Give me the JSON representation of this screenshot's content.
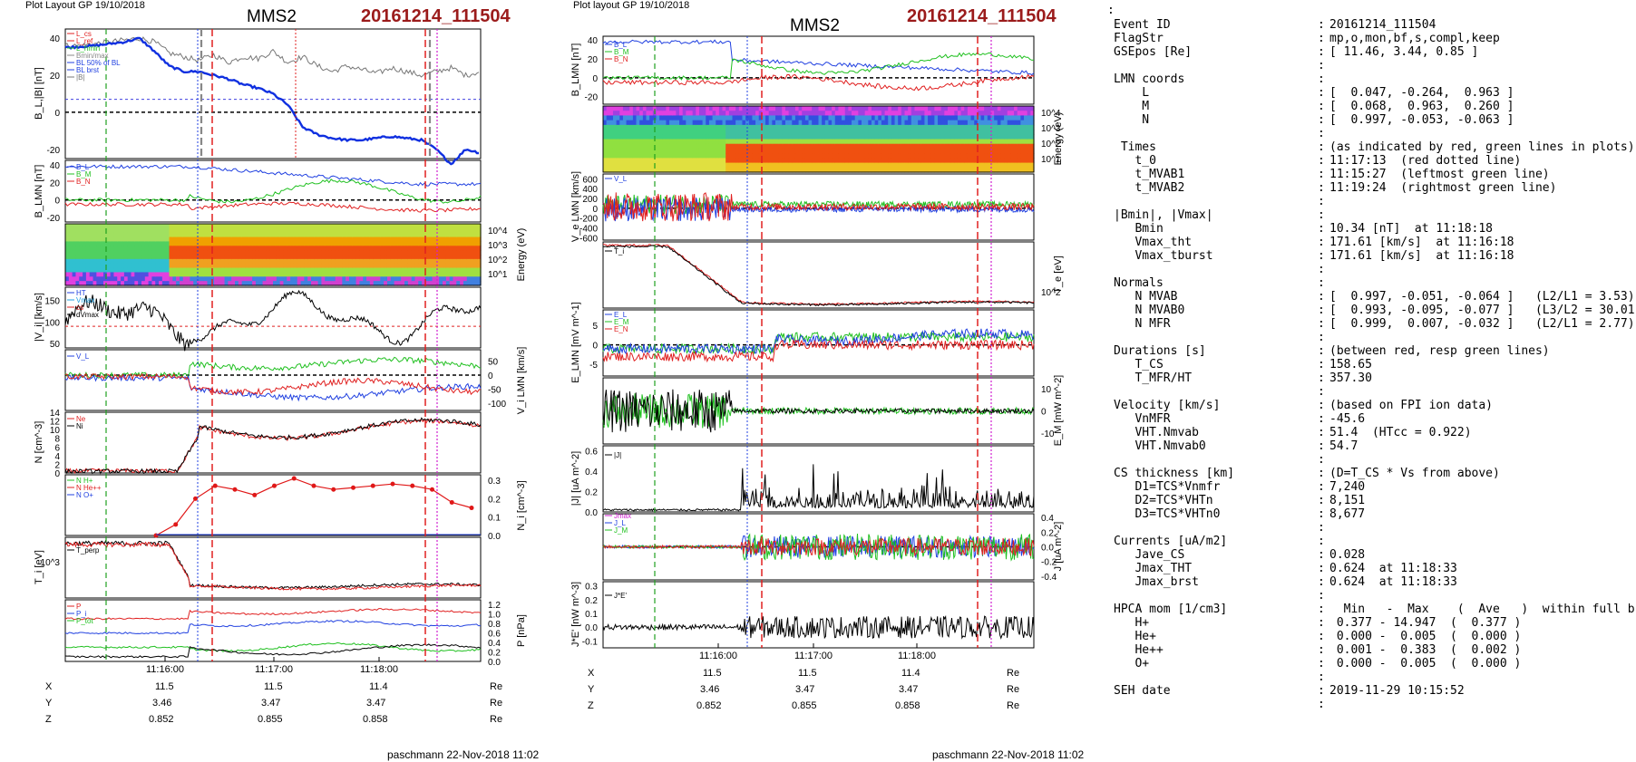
{
  "left_panel": {
    "layout_label": "Plot Layout GP 19/10/2018",
    "spacecraft": "MMS2",
    "event_id": "20161214_111504",
    "footer": "paschmann 22-Nov-2018 11:02",
    "time_ticks": [
      "11:16:00",
      "11:17:00",
      "11:18:00"
    ],
    "ephemeris": [
      {
        "coord": "X",
        "values": [
          "11.5",
          "11.5",
          "11.4"
        ],
        "unit": "Re"
      },
      {
        "coord": "Y",
        "values": [
          "3.46",
          "3.47",
          "3.47"
        ],
        "unit": "Re"
      },
      {
        "coord": "Z",
        "values": [
          "0.852",
          "0.855",
          "0.858"
        ],
        "unit": "Re"
      }
    ]
  },
  "middle_panel": {
    "layout_label": "Plot layout GP 19/10/2018",
    "spacecraft": "MMS2",
    "event_id": "20161214_111504",
    "footer": "paschmann 22-Nov-2018 11:02",
    "time_ticks": [
      "11:16:00",
      "11:17:00",
      "11:18:00"
    ],
    "ephemeris": [
      {
        "coord": "X",
        "values": [
          "11.5",
          "11.5",
          "11.4"
        ],
        "unit": "Re"
      },
      {
        "coord": "Y",
        "values": [
          "3.46",
          "3.47",
          "3.47"
        ],
        "unit": "Re"
      },
      {
        "coord": "Z",
        "values": [
          "0.852",
          "0.855",
          "0.858"
        ],
        "unit": "Re"
      }
    ]
  },
  "chart_data": [
    {
      "type": "line",
      "ylabel": "B_L,|B| [nT]",
      "ylim": [
        -25,
        45
      ],
      "yticks": [
        "40",
        "20",
        "0",
        "-20"
      ],
      "legend": [
        "L_cs",
        "L_ref",
        "L_hmin",
        "Bmin/max",
        "BL 50% of BL",
        "BL brst",
        "|B|"
      ],
      "series": [
        {
          "name": "|B|",
          "color": "#777777",
          "values": [
            36,
            36,
            37,
            38,
            39,
            40,
            38,
            32,
            30,
            28,
            31,
            27,
            30,
            29,
            33,
            27,
            30,
            25,
            22,
            25,
            23,
            21,
            24,
            22,
            20,
            22,
            24,
            20,
            22
          ]
        },
        {
          "name": "BL brst",
          "color": "#1030e0",
          "values": [
            35,
            35.5,
            36,
            37,
            38,
            40,
            33,
            25,
            22,
            22,
            20,
            18,
            15,
            13,
            10,
            4,
            -8,
            -12,
            -14,
            -15,
            -15,
            -14,
            -13,
            -14,
            -15,
            -20,
            -28,
            -20,
            -22
          ]
        }
      ]
    },
    {
      "type": "line",
      "ylabel": "B_LMN [nT]",
      "yticks": [
        "40",
        "20",
        "0",
        "-20"
      ],
      "legend": [
        "B_L",
        "B_M",
        "B_N"
      ]
    },
    {
      "type": "heatmap",
      "ylabel": "Energy (eV)",
      "yticks": [
        "10^4",
        "10^3",
        "10^2",
        "10^1"
      ]
    },
    {
      "type": "line",
      "ylabel": "|V_i| [km/s]",
      "yticks": [
        "150",
        "100",
        "50"
      ],
      "legend": [
        "HT",
        "Vmax",
        "cs",
        "dVmax"
      ]
    },
    {
      "type": "line",
      "ylabel": "V_i LMN [km/s]",
      "yticks": [
        "50",
        "0",
        "-50",
        "-100"
      ],
      "legend": [
        "V_L"
      ]
    },
    {
      "type": "line",
      "ylabel": "N [cm^-3]",
      "yticks": [
        "14",
        "12",
        "10",
        "8",
        "6",
        "4",
        "2",
        "0"
      ],
      "legend": [
        "Ne",
        "Ni"
      ]
    },
    {
      "type": "line",
      "ylabel": "N_i [cm^-3]",
      "yticks": [
        "0.3",
        "0.2",
        "0.1",
        "0.0"
      ],
      "legend": [
        "N H+",
        "N He++",
        "N O+"
      ],
      "series": [
        {
          "name": "N He++",
          "color": "#e01818",
          "values": [
            0.0,
            0.06,
            0.2,
            0.27,
            0.25,
            0.22,
            0.27,
            0.31,
            0.27,
            0.25,
            0.26,
            0.27,
            0.28,
            0.27,
            0.25,
            0.18,
            0.15
          ]
        }
      ]
    },
    {
      "type": "line",
      "ylabel": "T_i [eV]",
      "yticks": [
        "10^3"
      ],
      "legend": [
        "T_perp"
      ]
    },
    {
      "type": "line",
      "ylabel": "P [nPa]",
      "yticks": [
        "1.2",
        "1.0",
        "0.8",
        "0.6",
        "0.4",
        "0.2",
        "0.0"
      ],
      "legend": [
        "P",
        "P_i",
        "P_tot"
      ]
    },
    {
      "type": "line",
      "ylabel": "B_LMN [nT]",
      "yticks": [
        "40",
        "20",
        "0",
        "-20"
      ],
      "legend": [
        "B_L",
        "B_M",
        "B_N"
      ]
    },
    {
      "type": "heatmap",
      "ylabel": "Energy (eV)",
      "yticks": [
        "10^4",
        "10^3",
        "10^2",
        "10^1"
      ]
    },
    {
      "type": "line",
      "ylabel": "V_e LMN [km/s]",
      "yticks": [
        "600",
        "400",
        "200",
        "0",
        "-200",
        "-400",
        "-600"
      ],
      "legend": [
        "V_L"
      ]
    },
    {
      "type": "line",
      "ylabel": "T_e [eV]",
      "yticks": [
        "10^2"
      ],
      "legend": [
        "T_i"
      ]
    },
    {
      "type": "line",
      "ylabel": "E_LMN [mV m^-1]",
      "yticks": [
        "5",
        "0",
        "-5"
      ],
      "legend": [
        "E_L",
        "E_M",
        "E_N"
      ]
    },
    {
      "type": "line",
      "ylabel": "E_M [mW m^-2]",
      "yticks": [
        "10",
        "0",
        "-10"
      ]
    },
    {
      "type": "line",
      "ylabel": "|J| [uA m^-2]",
      "yticks": [
        "0.6",
        "0.4",
        "0.2",
        "0.0"
      ],
      "legend": [
        "|J|"
      ]
    },
    {
      "type": "line",
      "ylabel": "J [uA m^-2]",
      "yticks": [
        "0.4",
        "0.2",
        "0.0",
        "-0.2",
        "-0.4"
      ],
      "legend": [
        "Jmax",
        "J_L",
        "J_M"
      ]
    },
    {
      "type": "line",
      "ylabel": "J*E' [nW m^-3]",
      "yticks": [
        "0.3",
        "0.2",
        "0.1",
        "0.0",
        "-0.1"
      ],
      "legend": [
        "J*E'"
      ]
    }
  ],
  "info": {
    "top_colon": ":",
    "lines": [
      {
        "label": "Event ID",
        "value": "20161214_111504"
      },
      {
        "label": "FlagStr",
        "value": "mp,o,mon,bf,s,compl,keep"
      },
      {
        "label": "GSEpos [Re]",
        "value": "[ 11.46, 3.44, 0.85 ]"
      },
      {
        "label": "",
        "value": ""
      },
      {
        "label": "LMN coords",
        "value": ""
      },
      {
        "label": "    L",
        "value": "[  0.047, -0.264,  0.963 ]"
      },
      {
        "label": "    M",
        "value": "[  0.068,  0.963,  0.260 ]"
      },
      {
        "label": "    N",
        "value": "[  0.997, -0.053, -0.063 ]"
      },
      {
        "label": "",
        "value": ""
      },
      {
        "label": " Times",
        "value": "(as indicated by red, green lines in plots)"
      },
      {
        "label": "   t_0",
        "value": "11:17:13  (red dotted line)"
      },
      {
        "label": "   t_MVAB1",
        "value": "11:15:27  (leftmost green line)"
      },
      {
        "label": "   t_MVAB2",
        "value": "11:19:24  (rightmost green line)"
      },
      {
        "label": "",
        "value": ""
      },
      {
        "label": "|Bmin|, |Vmax|",
        "value": ""
      },
      {
        "label": "   Bmin",
        "value": "10.34 [nT]  at 11:18:18"
      },
      {
        "label": "   Vmax_tht",
        "value": "171.61 [km/s]  at 11:16:18"
      },
      {
        "label": "   Vmax_tburst",
        "value": "171.61 [km/s]  at 11:16:18"
      },
      {
        "label": "",
        "value": ""
      },
      {
        "label": "Normals",
        "value": ""
      },
      {
        "label": "   N MVAB",
        "value": "[  0.997, -0.051, -0.064 ]   (L2/L1 = 3.53)"
      },
      {
        "label": "   N MVAB0",
        "value": "[  0.993, -0.095, -0.077 ]   (L3/L2 = 30.01)"
      },
      {
        "label": "   N MFR",
        "value": "[  0.999,  0.007, -0.032 ]   (L2/L1 = 2.77)"
      },
      {
        "label": "",
        "value": ""
      },
      {
        "label": "Durations [s]",
        "value": "(between red, resp green lines)"
      },
      {
        "label": "   T_CS",
        "value": "158.65"
      },
      {
        "label": "   T_MFR/HT",
        "value": "357.30"
      },
      {
        "label": "",
        "value": ""
      },
      {
        "label": "Velocity [km/s]",
        "value": "(based on FPI ion data)"
      },
      {
        "label": "   VnMFR",
        "value": "-45.6"
      },
      {
        "label": "   VHT.Nmvab",
        "value": "51.4  (HTcc = 0.922)"
      },
      {
        "label": "   VHT.Nmvab0",
        "value": "54.7"
      },
      {
        "label": "",
        "value": ""
      },
      {
        "label": "CS thickness [km]",
        "value": "(D=T_CS * Vs from above)"
      },
      {
        "label": "   D1=TCS*Vnmfr",
        "value": "7,240"
      },
      {
        "label": "   D2=TCS*VHTn",
        "value": "8,151"
      },
      {
        "label": "   D3=TCS*VHTn0",
        "value": "8,677"
      },
      {
        "label": "",
        "value": ""
      },
      {
        "label": "Currents [uA/m2]",
        "value": ""
      },
      {
        "label": "   Jave_CS",
        "value": "0.028"
      },
      {
        "label": "   Jmax_THT",
        "value": "0.624  at 11:18:33"
      },
      {
        "label": "   Jmax_brst",
        "value": "0.624  at 11:18:33"
      },
      {
        "label": "",
        "value": ""
      },
      {
        "label": "HPCA mom [1/cm3]",
        "value": "  Min   -  Max    (  Ave   )  within full brst int"
      },
      {
        "label": "   H+",
        "value": " 0.377 - 14.947  (  0.377 )"
      },
      {
        "label": "   He+",
        "value": " 0.000 -  0.005  (  0.000 )"
      },
      {
        "label": "   He++",
        "value": " 0.001 -  0.383  (  0.002 )"
      },
      {
        "label": "   O+",
        "value": " 0.000 -  0.005  (  0.000 )"
      },
      {
        "label": "",
        "value": ""
      },
      {
        "label": "SEH date",
        "value": "2019-11-29 10:15:52"
      },
      {
        "label": "",
        "value": ""
      }
    ]
  }
}
